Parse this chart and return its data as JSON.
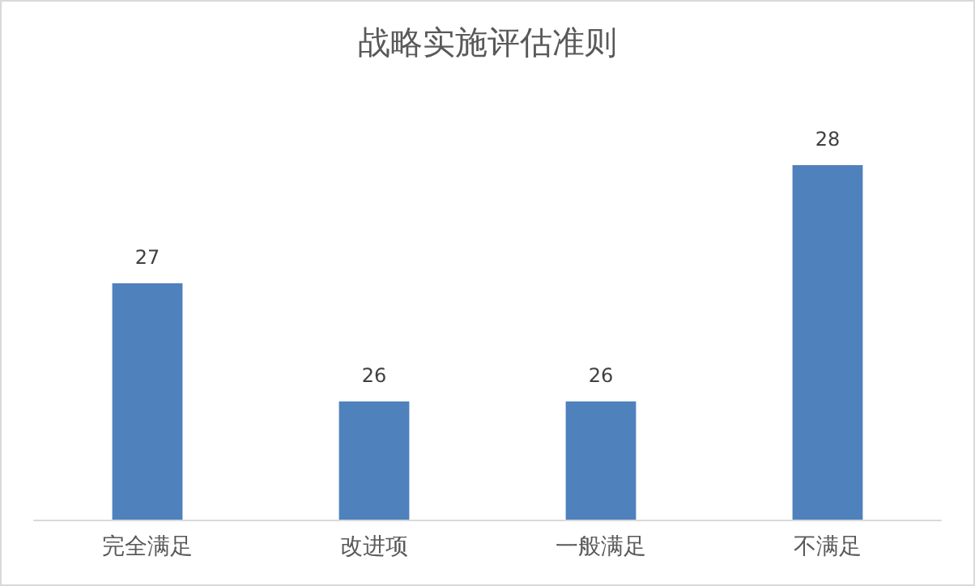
{
  "chart_data": {
    "type": "bar",
    "title": "战略实施评估准则",
    "categories": [
      "完全满足",
      "改进项",
      "一般满足",
      "不满足"
    ],
    "values": [
      27,
      26,
      26,
      28
    ],
    "color": "#4f81bd",
    "ylim": [
      25,
      28
    ],
    "data_labels": true,
    "grid": false
  }
}
